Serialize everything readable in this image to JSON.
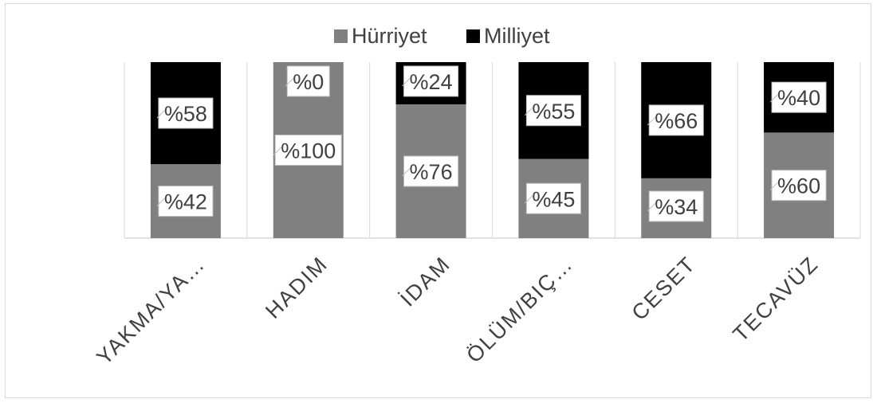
{
  "chart_data": {
    "type": "bar",
    "stacked": "percent",
    "categories": [
      "YAKMA/YA…",
      "HADIM",
      "İDAM",
      "ÖLÜM/BIÇ…",
      "CESET",
      "TECAVÜZ"
    ],
    "series": [
      {
        "name": "Hürriyet",
        "values": [
          42,
          100,
          76,
          45,
          34,
          60
        ],
        "labels": [
          "%42",
          "%100",
          "%76",
          "%45",
          "%34",
          "%60"
        ],
        "color": "#808080"
      },
      {
        "name": "Milliyet",
        "values": [
          58,
          0,
          24,
          55,
          66,
          40
        ],
        "labels": [
          "%58",
          "%0",
          "%24",
          "%55",
          "%66",
          "%40"
        ],
        "color": "#000000"
      }
    ],
    "ylim": [
      0,
      100
    ],
    "legend_position": "top",
    "grid": false,
    "title": "",
    "xlabel": "",
    "ylabel": ""
  }
}
